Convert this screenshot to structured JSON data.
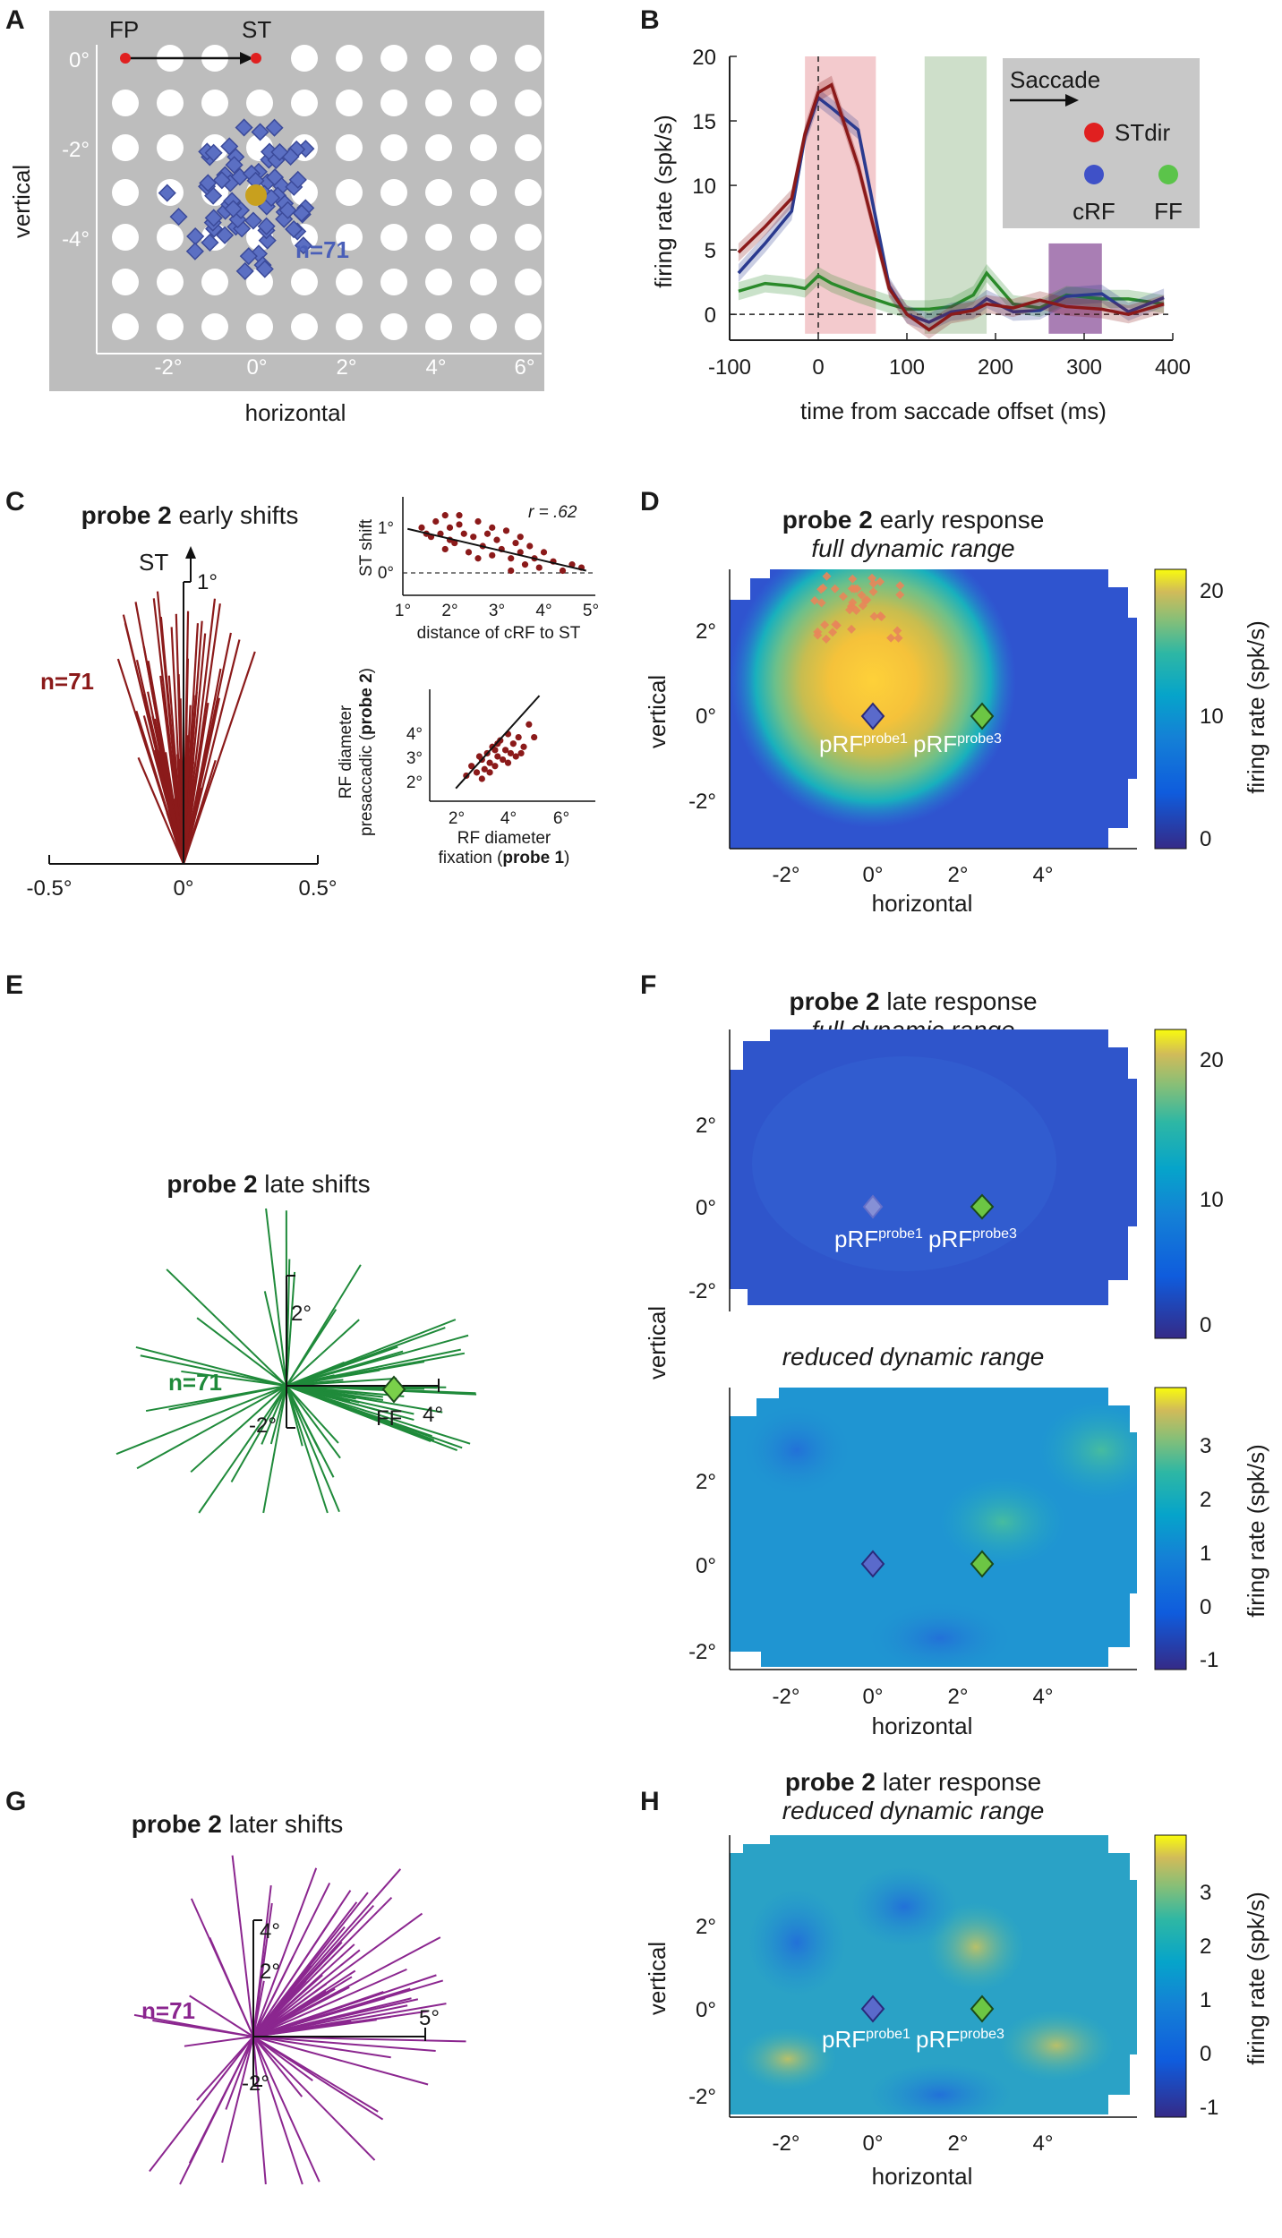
{
  "panels": {
    "A": {
      "label": "A",
      "fp_label": "FP",
      "st_label": "ST",
      "n_label": "n=71",
      "xlabel": "horizontal",
      "ylabel": "vertical",
      "xticks": [
        "-2°",
        "0°",
        "2°",
        "4°",
        "6°"
      ],
      "yticks": [
        "0°",
        "-2°",
        "-4°"
      ],
      "colors": {
        "background": "#bdbdbd",
        "probe": "#ffffff",
        "rf": "#5b6fc3",
        "fixation": "#e02020",
        "target": "#c8a01e"
      }
    },
    "B": {
      "label": "B",
      "xlabel": "time from saccade offset (ms)",
      "ylabel": "firing rate (spk/s)",
      "legend": {
        "title": "Saccade",
        "stdir": "STdir",
        "crf": "cRF",
        "ff": "FF"
      },
      "colors": {
        "stdir": "#8b1a1a",
        "crf": "#2a3a8f",
        "ff": "#2a8a2a",
        "early": "#f2c4c8",
        "late": "#c9dcc4",
        "later": "#a070ac",
        "legend_bg": "#c8c8c8"
      }
    },
    "C": {
      "label": "C",
      "title_bold": "probe 2",
      "title_rest": " early shifts",
      "st_label": "ST",
      "up_label": "1°",
      "n_label": "n=71",
      "xticks": [
        "-0.5°",
        "0°",
        "0.5°"
      ],
      "inset1": {
        "r_label": "r = .62",
        "ylabel": "ST shift",
        "xlabel": "distance of cRF to ST",
        "xticks": [
          "1°",
          "2°",
          "3°",
          "4°",
          "5°"
        ],
        "yticks": [
          "1°",
          "0°"
        ]
      },
      "inset2": {
        "ylabel_1": "RF diameter",
        "ylabel_2_pre": "presaccadic (",
        "ylabel_2_bold": "probe 2",
        "ylabel_2_post": ")",
        "xlabel_1": "RF diameter",
        "xlabel_2_pre": "fixation (",
        "xlabel_2_bold": "probe 1",
        "xlabel_2_post": ")",
        "xticks": [
          "2°",
          "4°",
          "6°"
        ],
        "yticks": [
          "4°",
          "3°",
          "2°"
        ]
      },
      "colors": {
        "lines": "#8b1a1a",
        "dots": "#8b1a1a"
      }
    },
    "D": {
      "label": "D",
      "title_bold": "probe 2",
      "title_rest": " early response",
      "subtitle": "full dynamic range",
      "xlabel": "horizontal",
      "ylabel": "vertical",
      "xticks": [
        "-2°",
        "0°",
        "2°",
        "4°"
      ],
      "yticks": [
        "2°",
        "0°",
        "-2°"
      ],
      "colorbar_label": "firing rate (spk/s)",
      "colorbar_ticks": [
        "20",
        "10",
        "0"
      ],
      "prf1": "pRF",
      "prf1_sup": "probe1",
      "prf3": "pRF",
      "prf3_sup": "probe3"
    },
    "E": {
      "label": "E",
      "title_bold": "probe 2",
      "title_rest": " late shifts",
      "n_label": "n=71",
      "up_label": "2°",
      "down_label": "-2°",
      "right_label": "4°",
      "ff_label": "FF",
      "colors": {
        "lines": "#1f8a3a"
      }
    },
    "F": {
      "label": "F",
      "title_bold": "probe 2",
      "title_rest": " late response",
      "subtitle": "full dynamic range",
      "subtitle2": "reduced dynamic range",
      "xlabel": "horizontal",
      "ylabel": "vertical",
      "xticks": [
        "-2°",
        "0°",
        "2°",
        "4°"
      ],
      "yticks": [
        "2°",
        "0°",
        "-2°"
      ],
      "colorbar_label": "firing rate (spk/s)",
      "colorbar_ticks_top": [
        "20",
        "10",
        "0"
      ],
      "colorbar_ticks_bottom": [
        "3",
        "2",
        "1",
        "0",
        "-1"
      ],
      "prf1": "pRF",
      "prf1_sup": "probe1",
      "prf3": "pRF",
      "prf3_sup": "probe3"
    },
    "G": {
      "label": "G",
      "title_bold": "probe 2",
      "title_rest": " later shifts",
      "n_label": "n=71",
      "up_label": "4°",
      "mid_label": "2°",
      "down_label": "-2°",
      "right_label": "5°",
      "colors": {
        "lines": "#8b268f"
      }
    },
    "H": {
      "label": "H",
      "title_bold": "probe 2",
      "title_rest": " later response",
      "subtitle": "reduced dynamic range",
      "xlabel": "horizontal",
      "ylabel": "vertical",
      "xticks": [
        "-2°",
        "0°",
        "2°",
        "4°"
      ],
      "yticks": [
        "2°",
        "0°",
        "-2°"
      ],
      "colorbar_label": "firing rate (spk/s)",
      "colorbar_ticks": [
        "3",
        "2",
        "1",
        "0",
        "-1"
      ],
      "prf1": "pRF",
      "prf1_sup": "probe1",
      "prf3": "pRF",
      "prf3_sup": "probe3"
    }
  },
  "chart_data": [
    {
      "panel": "B",
      "type": "line",
      "title": "",
      "xlabel": "time from saccade offset (ms)",
      "ylabel": "firing rate (spk/s)",
      "xlim": [
        -100,
        400
      ],
      "ylim": [
        -2,
        20
      ],
      "xticks": [
        -100,
        0,
        100,
        200,
        300,
        400
      ],
      "yticks": [
        0,
        5,
        10,
        15,
        20
      ],
      "x": [
        -90,
        -60,
        -30,
        -15,
        0,
        15,
        45,
        80,
        100,
        125,
        150,
        175,
        190,
        220,
        250,
        280,
        320,
        350,
        390
      ],
      "series": [
        {
          "name": "STdir",
          "values": [
            4.8,
            6.8,
            9.0,
            14.0,
            17.2,
            17.8,
            11.5,
            2.0,
            0.0,
            -1.2,
            0.0,
            0.3,
            0.8,
            0.5,
            1.1,
            0.6,
            0.4,
            0.0,
            0.8
          ]
        },
        {
          "name": "cRF",
          "values": [
            3.2,
            5.5,
            8.0,
            13.8,
            16.8,
            16.0,
            14.3,
            2.2,
            0.0,
            -0.6,
            0.2,
            0.4,
            1.2,
            0.2,
            0.3,
            1.4,
            1.6,
            0.2,
            1.3
          ]
        },
        {
          "name": "FF",
          "values": [
            1.8,
            2.4,
            2.2,
            2.0,
            3.0,
            2.4,
            1.6,
            0.8,
            0.4,
            0.4,
            0.6,
            1.5,
            3.2,
            0.8,
            0.5,
            1.5,
            1.2,
            1.2,
            0.8
          ]
        }
      ],
      "windows": [
        {
          "name": "early",
          "from": -15,
          "to": 65
        },
        {
          "name": "late",
          "from": 120,
          "to": 190
        },
        {
          "name": "later",
          "from": 260,
          "to": 320
        }
      ],
      "legend": [
        "Saccade",
        "STdir",
        "cRF",
        "FF"
      ]
    },
    {
      "panel": "C-inset1",
      "type": "scatter",
      "r": 0.62,
      "xlabel": "distance of cRF to ST",
      "ylabel": "ST shift",
      "xlim": [
        1,
        5
      ],
      "ylim": [
        -0.4,
        1.2
      ],
      "fit": [
        [
          1.1,
          0.68
        ],
        [
          4.9,
          0.0
        ]
      ],
      "points": [
        [
          1.4,
          0.7
        ],
        [
          1.6,
          0.55
        ],
        [
          1.7,
          0.8
        ],
        [
          1.8,
          0.6
        ],
        [
          1.9,
          0.9
        ],
        [
          2.0,
          0.5
        ],
        [
          2.0,
          0.7
        ],
        [
          2.1,
          0.45
        ],
        [
          2.2,
          0.75
        ],
        [
          2.3,
          0.6
        ],
        [
          2.4,
          0.3
        ],
        [
          2.5,
          0.55
        ],
        [
          2.6,
          0.8
        ],
        [
          2.7,
          0.4
        ],
        [
          2.8,
          0.6
        ],
        [
          2.9,
          0.25
        ],
        [
          3.0,
          0.5
        ],
        [
          3.1,
          0.35
        ],
        [
          3.2,
          0.65
        ],
        [
          3.3,
          0.2
        ],
        [
          3.4,
          0.45
        ],
        [
          3.5,
          0.3
        ],
        [
          3.6,
          0.1
        ],
        [
          3.7,
          0.4
        ],
        [
          3.8,
          0.2
        ],
        [
          3.9,
          0.05
        ],
        [
          4.0,
          0.3
        ],
        [
          4.2,
          0.15
        ],
        [
          4.4,
          0.0
        ],
        [
          4.6,
          0.1
        ],
        [
          4.8,
          0.05
        ],
        [
          1.5,
          0.6
        ],
        [
          2.2,
          0.9
        ],
        [
          2.9,
          0.7
        ],
        [
          3.5,
          0.55
        ],
        [
          2.6,
          0.2
        ],
        [
          3.3,
          0.0
        ],
        [
          1.9,
          0.35
        ]
      ]
    },
    {
      "panel": "C-inset2",
      "type": "scatter",
      "xlabel": "RF diameter fixation (probe 1)",
      "ylabel": "RF diameter presaccadic (probe 2)",
      "xlim": [
        1,
        7
      ],
      "ylim": [
        1.5,
        5
      ],
      "fit": [
        [
          2.0,
          1.9
        ],
        [
          5.2,
          4.8
        ]
      ],
      "points": [
        [
          2.4,
          2.3
        ],
        [
          2.6,
          2.6
        ],
        [
          2.8,
          2.4
        ],
        [
          3.0,
          2.8
        ],
        [
          3.1,
          2.5
        ],
        [
          3.2,
          3.0
        ],
        [
          3.3,
          2.7
        ],
        [
          3.4,
          3.2
        ],
        [
          3.5,
          2.6
        ],
        [
          3.6,
          2.9
        ],
        [
          3.7,
          3.4
        ],
        [
          3.8,
          2.8
        ],
        [
          3.9,
          3.1
        ],
        [
          4.0,
          3.6
        ],
        [
          4.1,
          3.0
        ],
        [
          4.2,
          3.3
        ],
        [
          4.3,
          2.9
        ],
        [
          4.4,
          3.5
        ],
        [
          4.6,
          3.2
        ],
        [
          4.8,
          3.9
        ],
        [
          5.0,
          3.5
        ],
        [
          3.0,
          2.2
        ],
        [
          3.5,
          3.1
        ],
        [
          4.0,
          2.7
        ],
        [
          2.9,
          2.9
        ],
        [
          3.6,
          3.3
        ],
        [
          4.5,
          3.0
        ],
        [
          3.3,
          2.4
        ]
      ]
    },
    {
      "panel": "D",
      "type": "heatmap",
      "title": "probe 2 early response",
      "subtitle": "full dynamic range",
      "xlabel": "horizontal",
      "ylabel": "vertical",
      "xlim": [
        -3.5,
        5.8
      ],
      "ylim": [
        -3.1,
        3.3
      ],
      "colorbar": {
        "label": "firing rate (spk/s)",
        "range": [
          -2,
          22
        ],
        "ticks": [
          20,
          10,
          0
        ]
      },
      "peak": {
        "x": 0.0,
        "y": 0.6,
        "value": 21
      },
      "markers": [
        {
          "label": "pRF probe1",
          "x": 0,
          "y": 0
        },
        {
          "label": "pRF probe3",
          "x": 2.8,
          "y": 0
        }
      ]
    },
    {
      "panel": "F-top",
      "type": "heatmap",
      "title": "probe 2 late response",
      "subtitle": "full dynamic range",
      "xlim": [
        -3.5,
        5.8
      ],
      "ylim": [
        -3.1,
        3.3
      ],
      "colorbar": {
        "label": "firing rate (spk/s)",
        "range": [
          -2,
          22
        ],
        "ticks": [
          20,
          10,
          0
        ]
      },
      "markers": [
        {
          "label": "pRF probe1",
          "x": 0,
          "y": 0
        },
        {
          "label": "pRF probe3",
          "x": 2.8,
          "y": 0
        }
      ]
    },
    {
      "panel": "F-bottom",
      "type": "heatmap",
      "subtitle": "reduced dynamic range",
      "xlabel": "horizontal",
      "ylabel": "vertical",
      "xlim": [
        -3.5,
        5.8
      ],
      "ylim": [
        -3.1,
        3.3
      ],
      "colorbar": {
        "label": "firing rate (spk/s)",
        "range": [
          -1,
          3.8
        ],
        "ticks": [
          3,
          2,
          1,
          0,
          -1
        ]
      },
      "markers": [
        {
          "label": "pRF probe1",
          "x": 0,
          "y": 0
        },
        {
          "label": "pRF probe3",
          "x": 2.8,
          "y": 0
        }
      ]
    },
    {
      "panel": "H",
      "type": "heatmap",
      "title": "probe 2 later response",
      "subtitle": "reduced dynamic range",
      "xlabel": "horizontal",
      "ylabel": "vertical",
      "xlim": [
        -3.5,
        5.8
      ],
      "ylim": [
        -3.1,
        3.3
      ],
      "colorbar": {
        "label": "firing rate (spk/s)",
        "range": [
          -1,
          3.8
        ],
        "ticks": [
          3,
          2,
          1,
          0,
          -1
        ]
      },
      "markers": [
        {
          "label": "pRF probe1",
          "x": 0,
          "y": 0
        },
        {
          "label": "pRF probe3",
          "x": 2.8,
          "y": 0
        }
      ]
    }
  ]
}
